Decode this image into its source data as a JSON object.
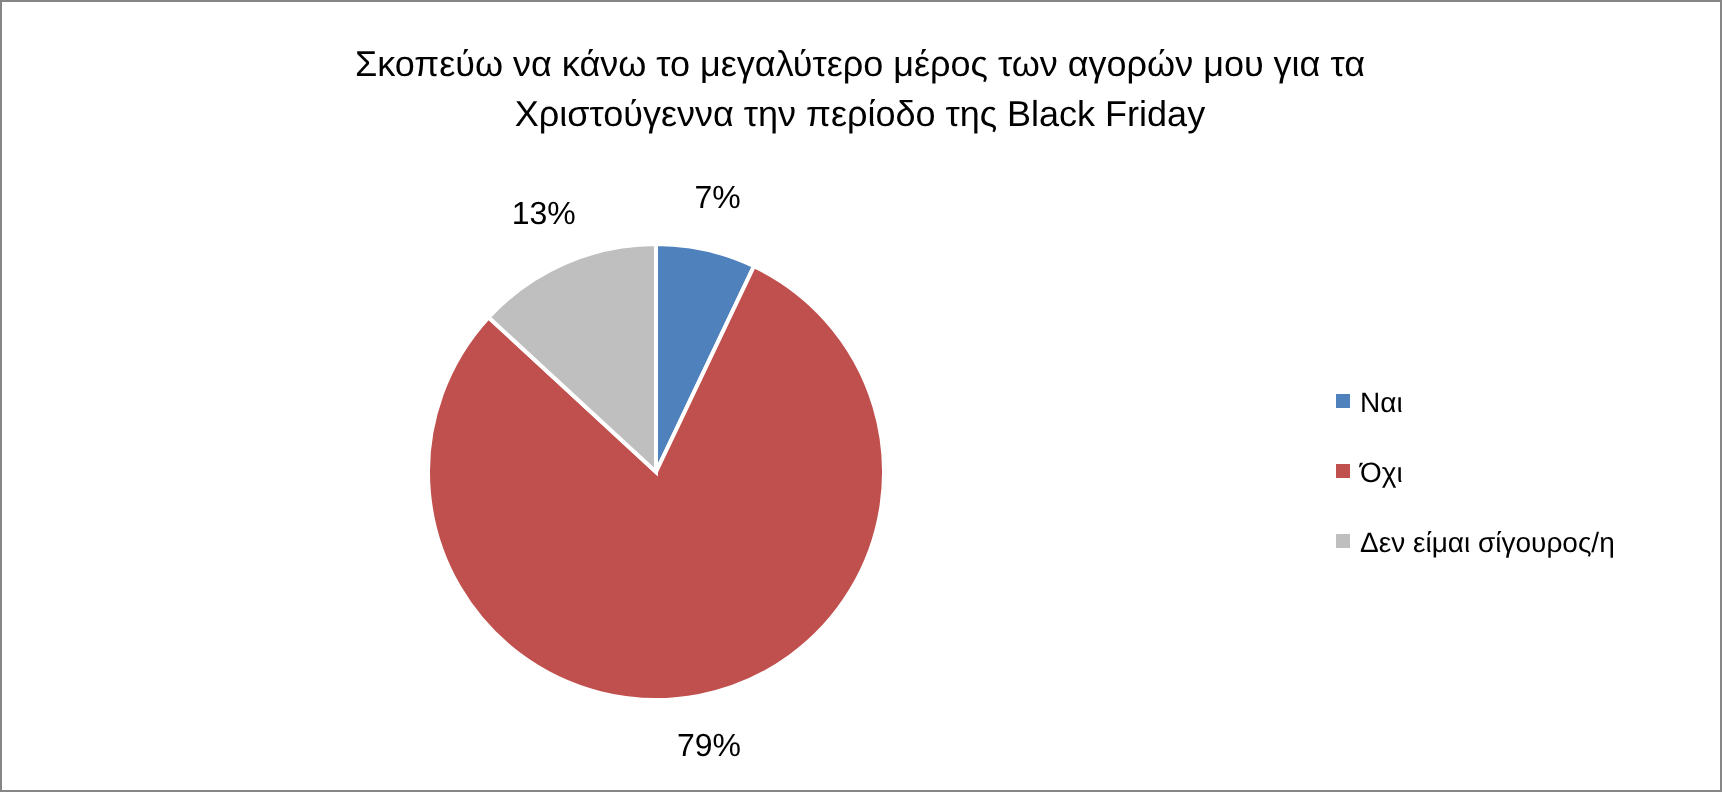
{
  "chart_data": {
    "type": "pie",
    "title": "Σκοπεύω να κάνω το μεγαλύτερο μέρος των αγορών μου για τα Χριστούγεννα την περίοδο της Black Friday",
    "categories": [
      "Ναι",
      "Όχι",
      "Δεν είμαι σίγουρος/η"
    ],
    "values": [
      7,
      79,
      13
    ],
    "value_labels": [
      "7%",
      "79%",
      "13%"
    ],
    "colors": [
      "#4f81bd",
      "#c0504d",
      "#bfbfbf"
    ],
    "legend": "right"
  }
}
